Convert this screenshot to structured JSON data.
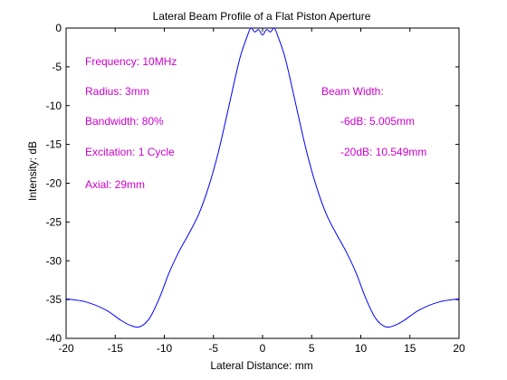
{
  "chart_data": {
    "type": "line",
    "title": "Lateral Beam Profile of a Flat Piston Aperture",
    "xlabel": "Lateral Distance: mm",
    "ylabel": "Intensity: dB",
    "xlim": [
      -20,
      20
    ],
    "ylim": [
      -40,
      0
    ],
    "xticks": [
      "-20",
      "-15",
      "-10",
      "-5",
      "0",
      "5",
      "10",
      "15",
      "20"
    ],
    "yticks": [
      "0",
      "-5",
      "-10",
      "-15",
      "-20",
      "-25",
      "-30",
      "-35",
      "-40"
    ],
    "grid": false,
    "line_color": "#0000ff",
    "annotation_color": "#cc00cc",
    "series": [
      {
        "x": [
          -20,
          -18,
          -16,
          -14.5,
          -13.5,
          -12.5,
          -11.5,
          -10.5,
          -9.5,
          -8.5,
          -7.5,
          -6.5,
          -5.5,
          -4.5,
          -3.5,
          -2.8,
          -2.2,
          -1.6,
          -1.2,
          -0.8,
          -0.4,
          0,
          0.4,
          0.8,
          1.2,
          1.6,
          2.2,
          2.8,
          3.5,
          4.5,
          5.5,
          6.5,
          7.5,
          8.5,
          9.5,
          10.5,
          11.5,
          12.5,
          13.5,
          14.5,
          16,
          18,
          20
        ],
        "y": [
          -34.9,
          -35.3,
          -36.3,
          -37.6,
          -38.3,
          -38.5,
          -37.4,
          -34.8,
          -31.5,
          -28.8,
          -26.5,
          -24,
          -20.5,
          -16,
          -10.5,
          -6.5,
          -3.4,
          -1.2,
          0,
          -0.5,
          -0.2,
          -0.9,
          -0.2,
          -0.5,
          0,
          -1.2,
          -3.4,
          -6.5,
          -10.5,
          -16,
          -20.5,
          -24,
          -26.5,
          -28.8,
          -31.5,
          -34.8,
          -37.4,
          -38.5,
          -38.3,
          -37.6,
          -36.3,
          -35.3,
          -34.9
        ]
      }
    ]
  },
  "annotations": {
    "frequency": "Frequency: 10MHz",
    "radius": "Radius: 3mm",
    "bandwidth": "Bandwidth: 80%",
    "excitation": "Excitation: 1 Cycle",
    "axial": "Axial: 29mm",
    "beam_width": "Beam Width:",
    "bw_6db": "-6dB: 5.005mm",
    "bw_20db": "-20dB: 10.549mm"
  }
}
